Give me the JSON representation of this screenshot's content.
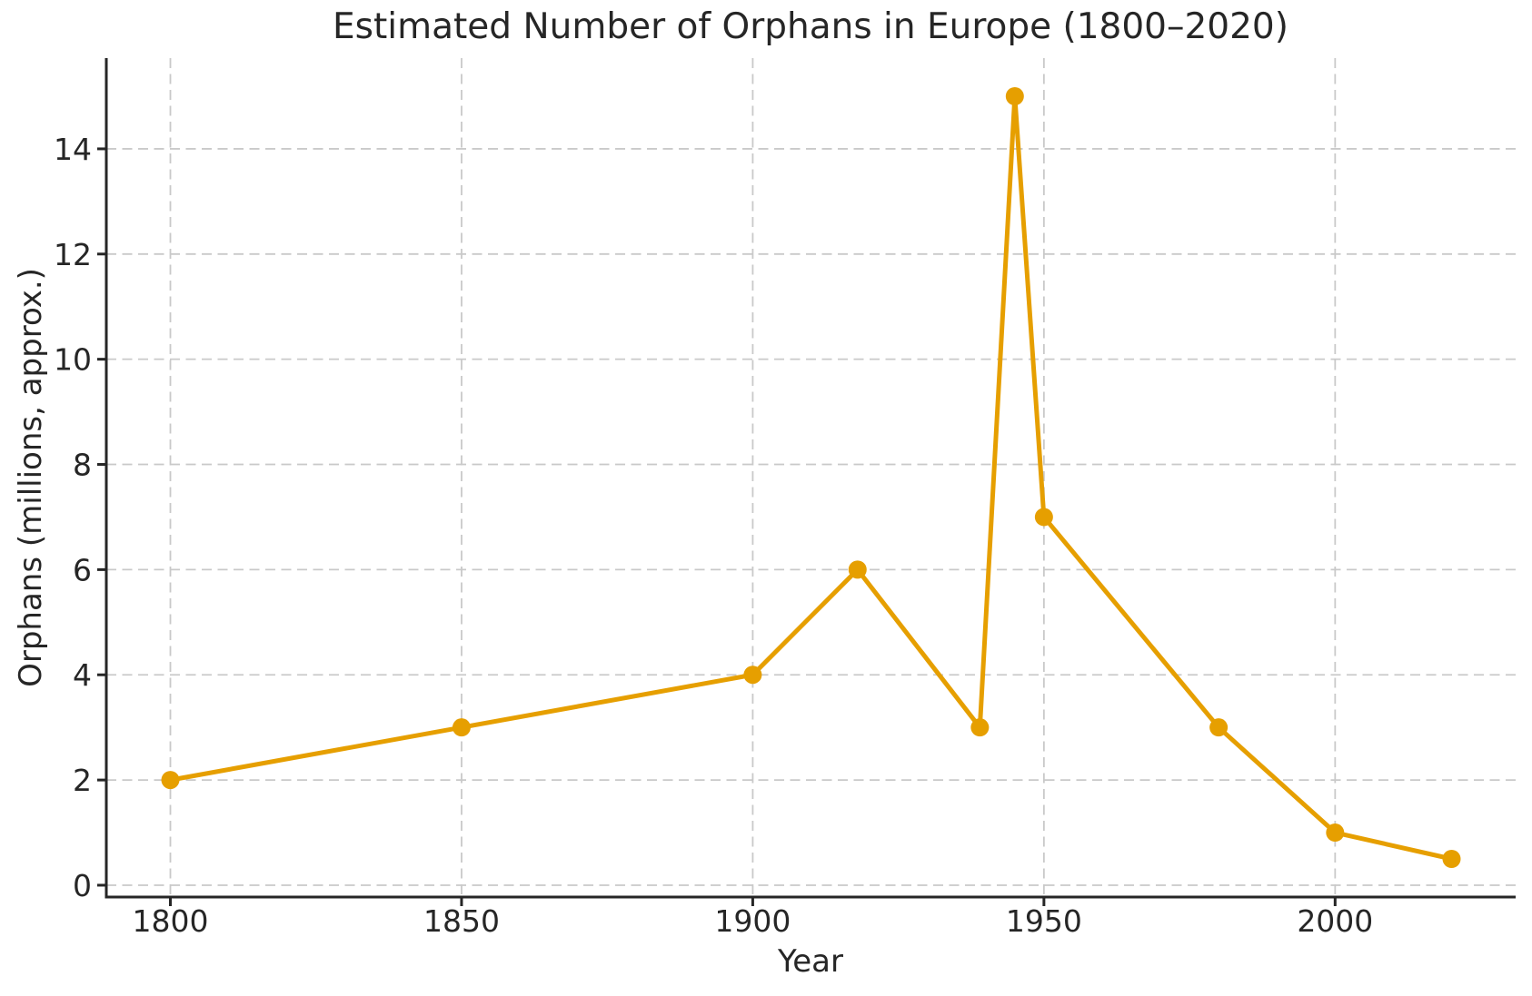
{
  "chart_data": {
    "type": "line",
    "title": "Estimated Number of Orphans in Europe (1800–2020)",
    "xlabel": "Year",
    "ylabel": "Orphans (millions, approx.)",
    "x": [
      1800,
      1850,
      1900,
      1918,
      1939,
      1945,
      1950,
      1980,
      2000,
      2020
    ],
    "y": [
      2,
      3,
      4,
      6,
      3,
      15,
      7,
      3,
      1,
      0.5
    ],
    "xticks": [
      1800,
      1850,
      1900,
      1950,
      2000
    ],
    "yticks": [
      0,
      2,
      4,
      6,
      8,
      10,
      12,
      14
    ],
    "xlim": [
      1789,
      2031
    ],
    "ylim": [
      -0.225,
      15.725
    ],
    "grid": true,
    "grid_style": "dashed",
    "legend": false,
    "marker": "circle",
    "line_color": "#E69F00"
  },
  "colors": {
    "line": "#E69F00",
    "grid": "#c9c9c9",
    "spine": "#262626",
    "text": "#262626",
    "background": "#ffffff"
  }
}
